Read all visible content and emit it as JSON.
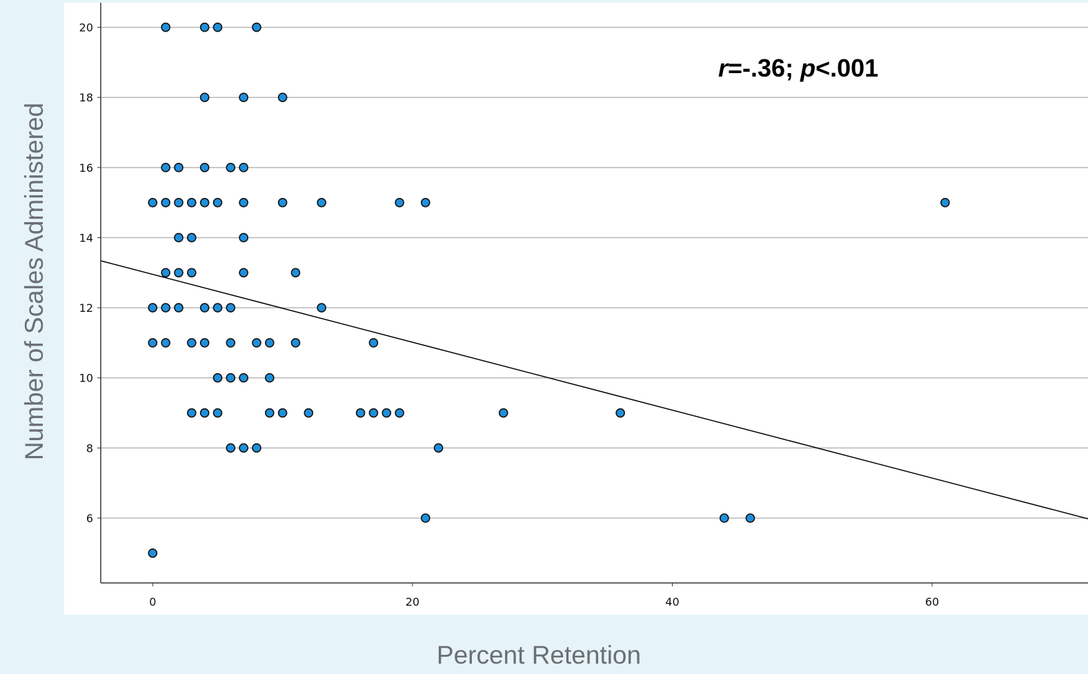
{
  "chart_data": {
    "type": "scatter",
    "xlabel": "Percent Retention",
    "ylabel": "Number of Scales Administered",
    "xlim": [
      -4,
      72
    ],
    "ylim": [
      4.15,
      20.7
    ],
    "xticks": [
      0,
      20,
      40,
      60
    ],
    "yticks": [
      6,
      8,
      10,
      12,
      14,
      16,
      18,
      20
    ],
    "grid": "horizontal",
    "annotation": {
      "r_symbol": "r",
      "r_value": "=-.36; ",
      "p_symbol": "p",
      "p_value": "<.001"
    },
    "marker_color": "#1f8fdb",
    "line_color": "#000000",
    "points": [
      {
        "x": 1,
        "y": 20
      },
      {
        "x": 4,
        "y": 20
      },
      {
        "x": 5,
        "y": 20
      },
      {
        "x": 8,
        "y": 20
      },
      {
        "x": 4,
        "y": 18
      },
      {
        "x": 7,
        "y": 18
      },
      {
        "x": 10,
        "y": 18
      },
      {
        "x": 1,
        "y": 16
      },
      {
        "x": 2,
        "y": 16
      },
      {
        "x": 4,
        "y": 16
      },
      {
        "x": 6,
        "y": 16
      },
      {
        "x": 7,
        "y": 16
      },
      {
        "x": 0,
        "y": 15
      },
      {
        "x": 1,
        "y": 15
      },
      {
        "x": 2,
        "y": 15
      },
      {
        "x": 3,
        "y": 15
      },
      {
        "x": 4,
        "y": 15
      },
      {
        "x": 5,
        "y": 15
      },
      {
        "x": 7,
        "y": 15
      },
      {
        "x": 10,
        "y": 15
      },
      {
        "x": 13,
        "y": 15
      },
      {
        "x": 19,
        "y": 15
      },
      {
        "x": 21,
        "y": 15
      },
      {
        "x": 61,
        "y": 15
      },
      {
        "x": 2,
        "y": 14
      },
      {
        "x": 3,
        "y": 14
      },
      {
        "x": 7,
        "y": 14
      },
      {
        "x": 1,
        "y": 13
      },
      {
        "x": 2,
        "y": 13
      },
      {
        "x": 3,
        "y": 13
      },
      {
        "x": 7,
        "y": 13
      },
      {
        "x": 11,
        "y": 13
      },
      {
        "x": 0,
        "y": 12
      },
      {
        "x": 1,
        "y": 12
      },
      {
        "x": 2,
        "y": 12
      },
      {
        "x": 4,
        "y": 12
      },
      {
        "x": 5,
        "y": 12
      },
      {
        "x": 6,
        "y": 12
      },
      {
        "x": 13,
        "y": 12
      },
      {
        "x": 0,
        "y": 11
      },
      {
        "x": 1,
        "y": 11
      },
      {
        "x": 3,
        "y": 11
      },
      {
        "x": 4,
        "y": 11
      },
      {
        "x": 6,
        "y": 11
      },
      {
        "x": 8,
        "y": 11
      },
      {
        "x": 9,
        "y": 11
      },
      {
        "x": 11,
        "y": 11
      },
      {
        "x": 17,
        "y": 11
      },
      {
        "x": 5,
        "y": 10
      },
      {
        "x": 6,
        "y": 10
      },
      {
        "x": 7,
        "y": 10
      },
      {
        "x": 9,
        "y": 10
      },
      {
        "x": 3,
        "y": 9
      },
      {
        "x": 4,
        "y": 9
      },
      {
        "x": 5,
        "y": 9
      },
      {
        "x": 9,
        "y": 9
      },
      {
        "x": 10,
        "y": 9
      },
      {
        "x": 12,
        "y": 9
      },
      {
        "x": 16,
        "y": 9
      },
      {
        "x": 17,
        "y": 9
      },
      {
        "x": 18,
        "y": 9
      },
      {
        "x": 19,
        "y": 9
      },
      {
        "x": 27,
        "y": 9
      },
      {
        "x": 36,
        "y": 9
      },
      {
        "x": 6,
        "y": 8
      },
      {
        "x": 7,
        "y": 8
      },
      {
        "x": 8,
        "y": 8
      },
      {
        "x": 22,
        "y": 8
      },
      {
        "x": 21,
        "y": 6
      },
      {
        "x": 44,
        "y": 6
      },
      {
        "x": 46,
        "y": 6
      },
      {
        "x": 0,
        "y": 5
      }
    ],
    "fit_line": {
      "x": [
        -4,
        72
      ],
      "y": [
        13.34,
        5.98
      ]
    }
  }
}
